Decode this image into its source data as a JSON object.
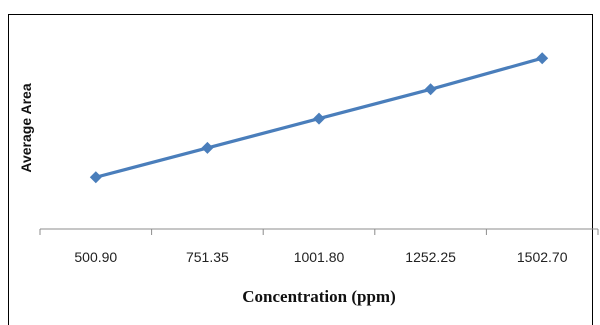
{
  "chart_data": {
    "type": "line",
    "title": "",
    "xlabel": "Concentration (ppm)",
    "ylabel": "Average Area",
    "categories": [
      "500.90",
      "751.35",
      "1001.80",
      "1252.25",
      "1502.70"
    ],
    "series": [
      {
        "values": [
          0.3,
          0.47,
          0.64,
          0.81,
          0.99
        ],
        "color": "#4a7ebb"
      }
    ],
    "ylim": [
      0,
      1.2
    ],
    "y_tick_labels_shown": false,
    "grid": false,
    "legend": "none",
    "marker": "diamond"
  }
}
